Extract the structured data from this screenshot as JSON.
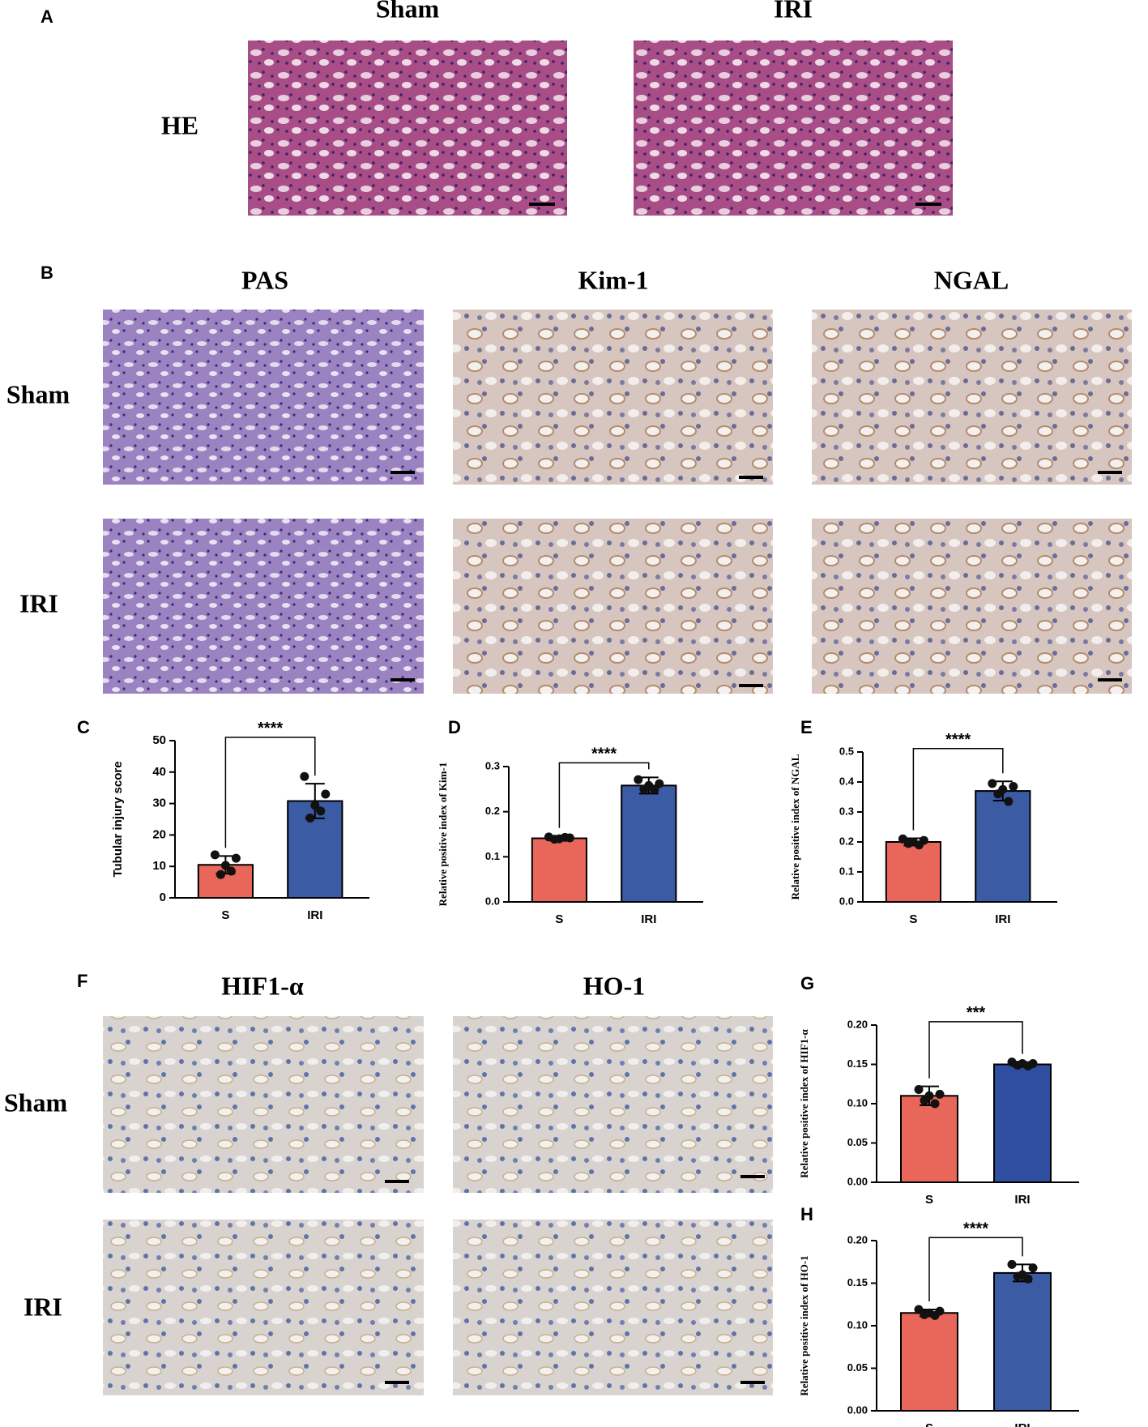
{
  "figure": {
    "panel_a": {
      "letter": "A",
      "columns": [
        "Sham",
        "IRI"
      ],
      "rows": [
        "HE"
      ]
    },
    "panel_b": {
      "letter": "B",
      "columns": [
        "PAS",
        "Kim-1",
        "NGAL"
      ],
      "rows": [
        "Sham",
        "IRI"
      ]
    },
    "panel_f": {
      "letter": "F",
      "columns": [
        "HIF1-α",
        "HO-1"
      ],
      "rows": [
        "Sham",
        "IRI"
      ]
    }
  },
  "chart_data": [
    {
      "type": "bar",
      "panel": "C",
      "ylabel": "Tubular injury score",
      "categories": [
        "S",
        "IRI"
      ],
      "values": [
        10.5,
        30.8
      ],
      "errors": [
        2.8,
        5.5
      ],
      "points": [
        [
          13.7,
          12.6,
          10.3,
          7.4,
          8.5
        ],
        [
          38.6,
          33.0,
          29.4,
          25.4,
          27.6
        ]
      ],
      "colors": [
        "#e8665a",
        "#3b5ba5"
      ],
      "significance": "****",
      "ylim": [
        0,
        50
      ],
      "yticks": [
        0,
        10,
        20,
        30,
        40,
        50
      ]
    },
    {
      "type": "bar",
      "panel": "D",
      "ylabel": "Relative positive index of Kim-1",
      "categories": [
        "S",
        "IRI"
      ],
      "values": [
        0.141,
        0.258
      ],
      "errors": [
        0.005,
        0.018
      ],
      "points": [
        [
          0.144,
          0.142,
          0.14,
          0.139,
          0.143
        ],
        [
          0.271,
          0.262,
          0.258,
          0.25,
          0.249
        ]
      ],
      "colors": [
        "#e8665a",
        "#3b5ba5"
      ],
      "significance": "****",
      "ylim": [
        0,
        0.3
      ],
      "yticks": [
        {
          "value": 0,
          "label": "0.0"
        },
        0.1,
        0.2,
        0.3
      ]
    },
    {
      "type": "bar",
      "panel": "E",
      "ylabel": "Relative positive index of NGAL",
      "categories": [
        "S",
        "IRI"
      ],
      "values": [
        0.2,
        0.37
      ],
      "errors": [
        0.012,
        0.032
      ],
      "points": [
        [
          0.21,
          0.205,
          0.2,
          0.195,
          0.19
        ],
        [
          0.395,
          0.385,
          0.375,
          0.36,
          0.335
        ]
      ],
      "colors": [
        "#e8665a",
        "#3b5ba5"
      ],
      "significance": "****",
      "ylim": [
        0,
        0.5
      ],
      "yticks": [
        {
          "value": 0,
          "label": "0.0"
        },
        0.1,
        0.2,
        0.3,
        0.4,
        0.5
      ]
    },
    {
      "type": "bar",
      "panel": "G",
      "ylabel": "Relative positive index of HIF1-α",
      "categories": [
        "S",
        "IRI"
      ],
      "values": [
        0.11,
        0.15
      ],
      "errors": [
        0.012,
        0.003
      ],
      "points": [
        [
          0.118,
          0.112,
          0.11,
          0.104,
          0.1
        ],
        [
          0.153,
          0.151,
          0.151,
          0.149,
          0.148
        ]
      ],
      "colors": [
        "#e8665a",
        "#2f4ea0"
      ],
      "significance": "***",
      "ylim": [
        0,
        0.2
      ],
      "yticks": [
        {
          "value": 0,
          "label": "0.00"
        },
        {
          "value": 0.05,
          "label": "0.05"
        },
        {
          "value": 0.1,
          "label": "0.10"
        },
        {
          "value": 0.15,
          "label": "0.15"
        },
        {
          "value": 0.2,
          "label": "0.20"
        }
      ]
    },
    {
      "type": "bar",
      "panel": "H",
      "ylabel": "Relative positive index of HO-1",
      "categories": [
        "S",
        "IRI"
      ],
      "values": [
        0.115,
        0.162
      ],
      "errors": [
        0.004,
        0.01
      ],
      "points": [
        [
          0.119,
          0.117,
          0.115,
          0.113,
          0.112
        ],
        [
          0.172,
          0.168,
          0.16,
          0.158,
          0.155
        ]
      ],
      "colors": [
        "#e8665a",
        "#3b5ba5"
      ],
      "significance": "****",
      "ylim": [
        0,
        0.2
      ],
      "yticks": [
        {
          "value": 0,
          "label": "0.00"
        },
        {
          "value": 0.05,
          "label": "0.05"
        },
        {
          "value": 0.1,
          "label": "0.10"
        },
        {
          "value": 0.15,
          "label": "0.15"
        },
        {
          "value": 0.2,
          "label": "0.20"
        }
      ]
    }
  ]
}
